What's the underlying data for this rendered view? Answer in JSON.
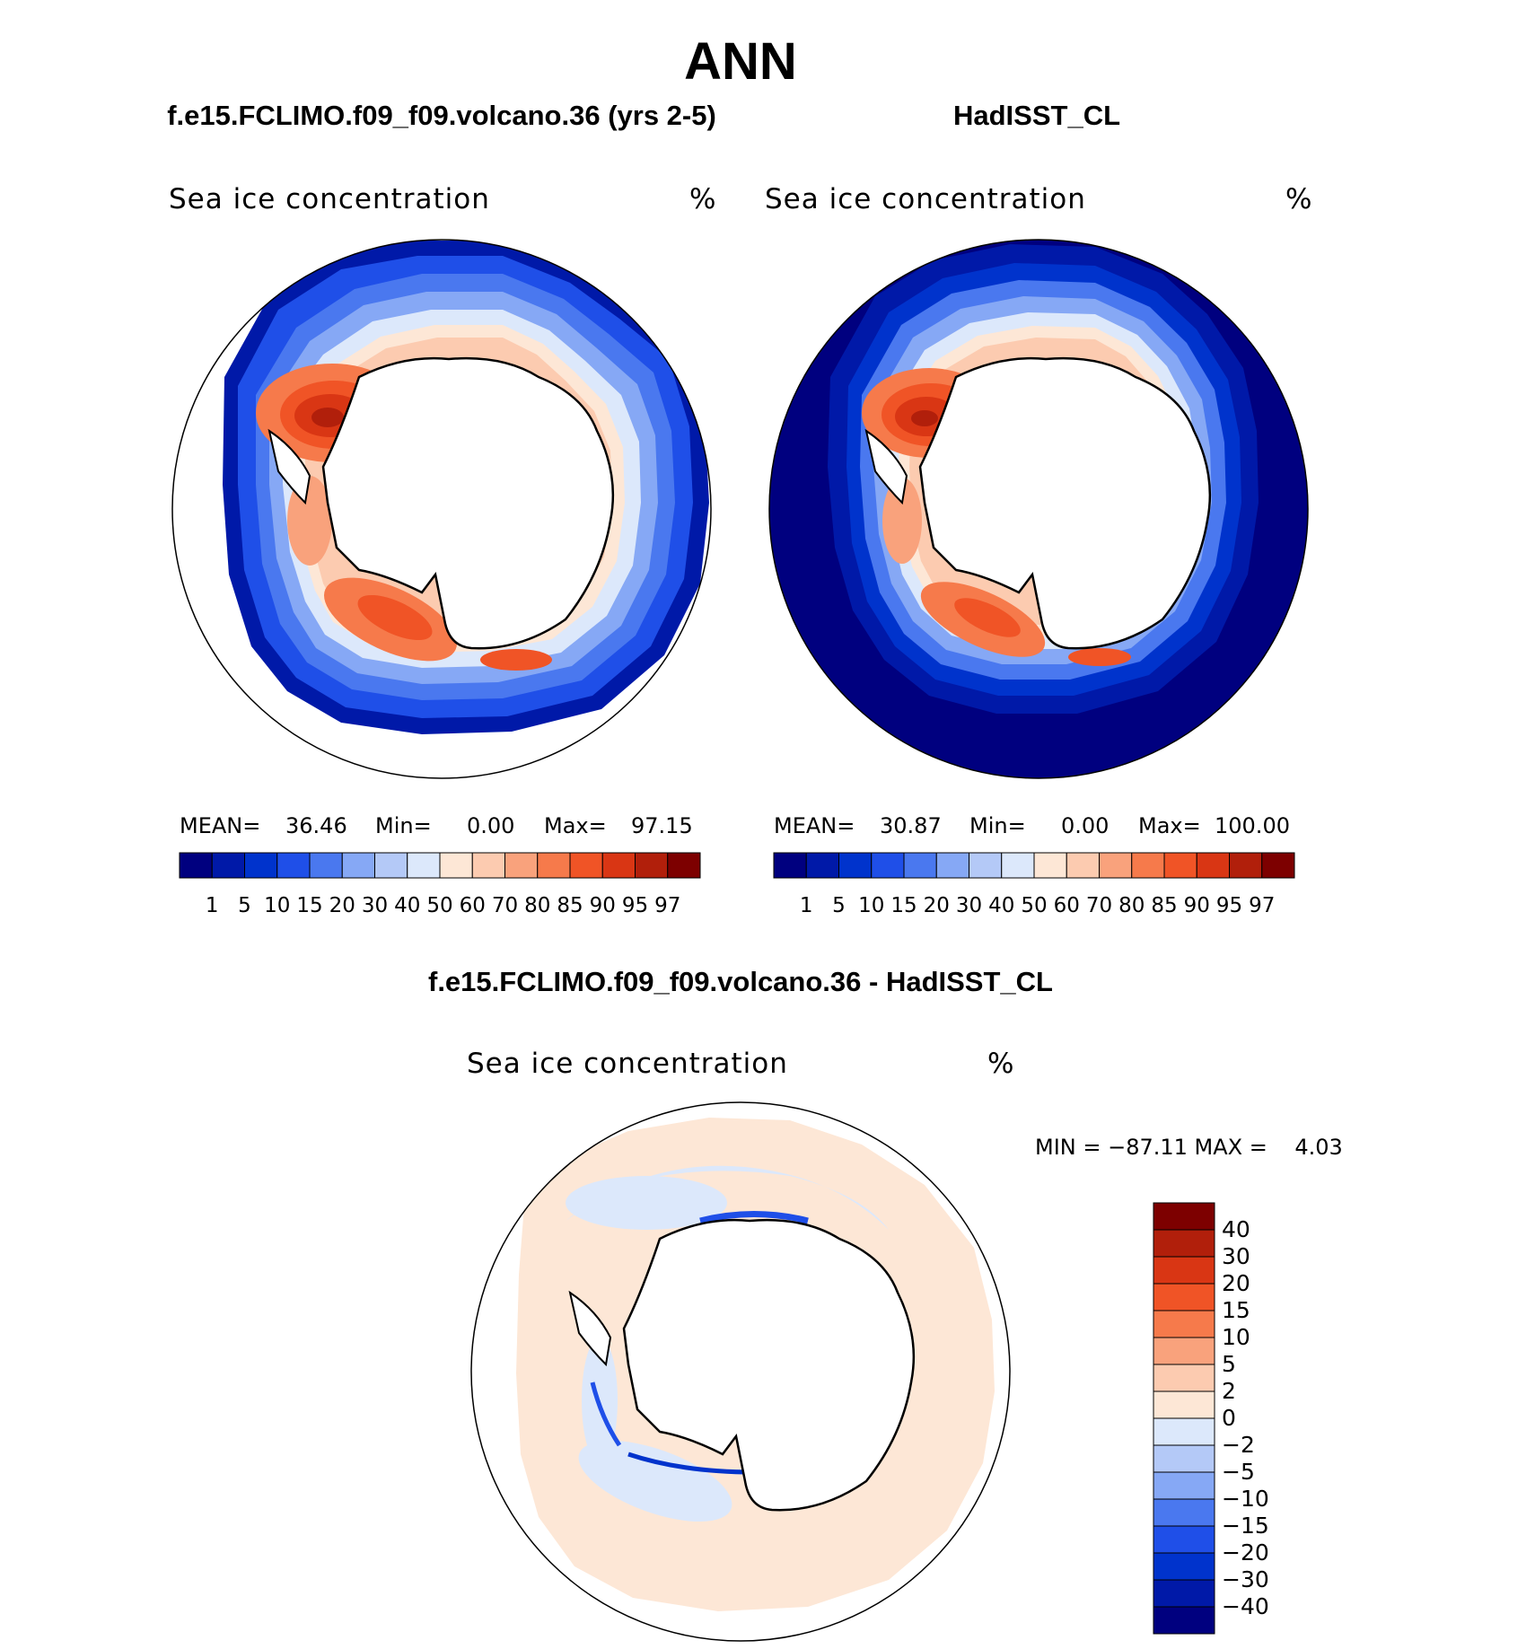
{
  "figure": {
    "title": "ANN",
    "panel_left_title": "f.e15.FCLIMO.f09_f09.volcano.36 (yrs 2-5)",
    "panel_right_title": "HadISST_CL",
    "panel_diff_title": "f.e15.FCLIMO.f09_f09.volcano.36 - HadISST_CL"
  },
  "panels": {
    "left": {
      "variable": "Sea ice concentration",
      "units": "%",
      "mean_label": "MEAN=",
      "mean": "36.46",
      "min_label": "Min=",
      "min": "0.00",
      "max_label": "Max=",
      "max": "97.15"
    },
    "right": {
      "variable": "Sea ice concentration",
      "units": "%",
      "mean_label": "MEAN=",
      "mean": "30.87",
      "min_label": "Min=",
      "min": "0.00",
      "max_label": "Max=",
      "max": "100.00"
    },
    "diff": {
      "variable": "Sea ice concentration",
      "units": "%",
      "range_text": "MIN = −87.11 MAX =    4.03"
    }
  },
  "colorbars": {
    "abs_colors": [
      "#00007f",
      "#0019a8",
      "#0033cc",
      "#1f4fe8",
      "#4a78ef",
      "#86a8f5",
      "#b4c9f7",
      "#dce8fb",
      "#fde7d6",
      "#fccbb0",
      "#f9a27c",
      "#f67a4b",
      "#f05426",
      "#d93614",
      "#b11f0b",
      "#7d0000"
    ],
    "abs_ticks": [
      "1",
      "5",
      "10",
      "15",
      "20",
      "30",
      "40",
      "50",
      "60",
      "70",
      "80",
      "85",
      "90",
      "95",
      "97"
    ],
    "diff_colors": [
      "#7d0000",
      "#b11f0b",
      "#d93614",
      "#f05426",
      "#f67a4b",
      "#f9a27c",
      "#fccbb0",
      "#fde7d6",
      "#dce8fb",
      "#b4c9f7",
      "#86a8f5",
      "#4a78ef",
      "#1f4fe8",
      "#0033cc",
      "#0019a8",
      "#00007f"
    ],
    "diff_ticks": [
      "40",
      "30",
      "20",
      "15",
      "10",
      "5",
      "2",
      "0",
      "−2",
      "−5",
      "−10",
      "−15",
      "−20",
      "−30",
      "−40"
    ]
  }
}
